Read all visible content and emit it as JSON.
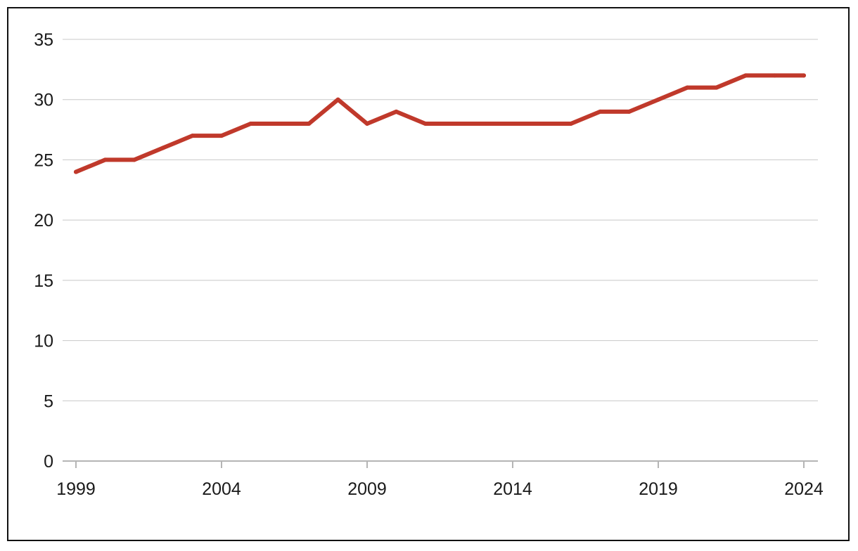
{
  "chart_data": {
    "type": "line",
    "title": "",
    "xlabel": "",
    "ylabel": "",
    "x": [
      1999,
      2000,
      2001,
      2002,
      2003,
      2004,
      2005,
      2006,
      2007,
      2008,
      2009,
      2010,
      2011,
      2012,
      2013,
      2014,
      2015,
      2016,
      2017,
      2018,
      2019,
      2020,
      2021,
      2022,
      2023,
      2024
    ],
    "series": [
      {
        "values": [
          24,
          25,
          25,
          26,
          27,
          27,
          28,
          28,
          28,
          30,
          28,
          29,
          28,
          28,
          28,
          28,
          28,
          28,
          29,
          29,
          30,
          31,
          31,
          32,
          32,
          32
        ],
        "color": "#c0392b"
      }
    ],
    "xlim": [
      1999,
      2024
    ],
    "ylim": [
      0,
      35
    ],
    "x_ticks": [
      "1999",
      "2004",
      "2009",
      "2014",
      "2019",
      "2024"
    ],
    "y_ticks": [
      "0",
      "5",
      "10",
      "15",
      "20",
      "25",
      "30",
      "35"
    ],
    "grid": "horizontal",
    "legend": "none"
  }
}
